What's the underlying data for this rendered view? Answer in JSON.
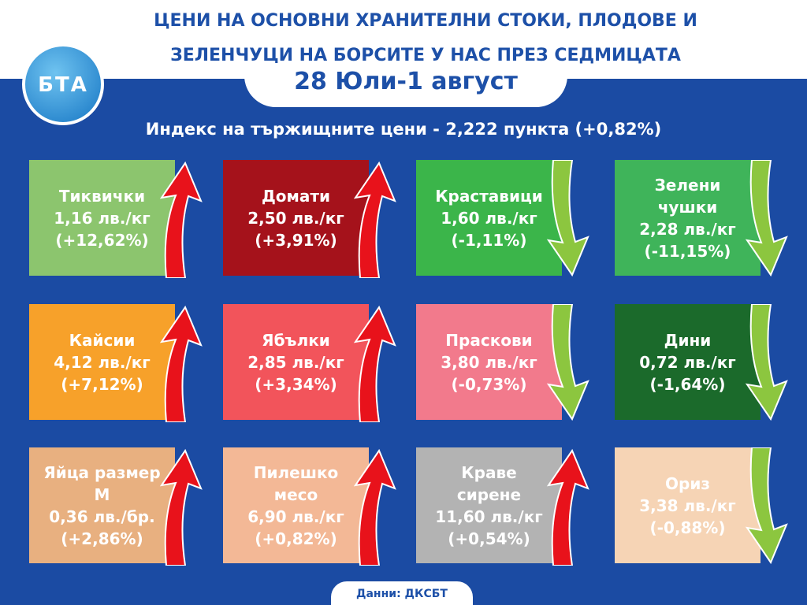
{
  "header": {
    "logo": "БТА",
    "title_lines": [
      "ЦЕНИ НА ОСНОВНИ ХРАНИТЕЛНИ СТОКИ, ПЛОДОВЕ И",
      "ЗЕЛЕНЧУЦИ НА БОРСИТЕ У НАС ПРЕЗ СЕДМИЦАТА"
    ],
    "date": "28 Юли-1 август"
  },
  "index": "Индекс на тържищните цени - 2,222 пункта (+0,82%)",
  "cards": [
    {
      "name": "Тиквички",
      "price": "1,16 лв./кг",
      "change": "(+12,62%)",
      "trend": "up",
      "color": "#8cc56e"
    },
    {
      "name": "Домати",
      "price": "2,50 лв./кг",
      "change": "(+3,91%)",
      "trend": "up",
      "color": "#a5121b"
    },
    {
      "name": "Краставици",
      "price": "1,60 лв./кг",
      "change": "(-1,11%)",
      "trend": "down",
      "color": "#3bb54a"
    },
    {
      "name": "Зелени чушки",
      "price": "2,28 лв./кг",
      "change": "(-11,15%)",
      "trend": "down",
      "color": "#3fb45a"
    },
    {
      "name": "Кайсии",
      "price": "4,12 лв./кг",
      "change": "(+7,12%)",
      "trend": "up",
      "color": "#f7a12a"
    },
    {
      "name": "Ябълки",
      "price": "2,85 лв./кг",
      "change": "(+3,34%)",
      "trend": "up",
      "color": "#f2545b"
    },
    {
      "name": "Праскови",
      "price": "3,80 лв./кг",
      "change": "(-0,73%)",
      "trend": "down",
      "color": "#f27a8c"
    },
    {
      "name": "Дини",
      "price": "0,72 лв./кг",
      "change": "(-1,64%)",
      "trend": "down",
      "color": "#1b6a2b"
    },
    {
      "name": "Яйца размер М",
      "price": "0,36 лв./бр.",
      "change": "(+2,86%)",
      "trend": "up",
      "color": "#e8b080"
    },
    {
      "name": "Пилешко месо",
      "price": "6,90 лв./кг",
      "change": "(+0,82%)",
      "trend": "up",
      "color": "#f3b896"
    },
    {
      "name": "Краве сирене",
      "price": "11,60 лв./кг",
      "change": "(+0,54%)",
      "trend": "up",
      "color": "#b3b3b3"
    },
    {
      "name": "Ориз",
      "price": "3,38 лв./кг",
      "change": "(-0,88%)",
      "trend": "down",
      "color": "#f6d4b5"
    }
  ],
  "source": "Данни: ДКСБТ"
}
